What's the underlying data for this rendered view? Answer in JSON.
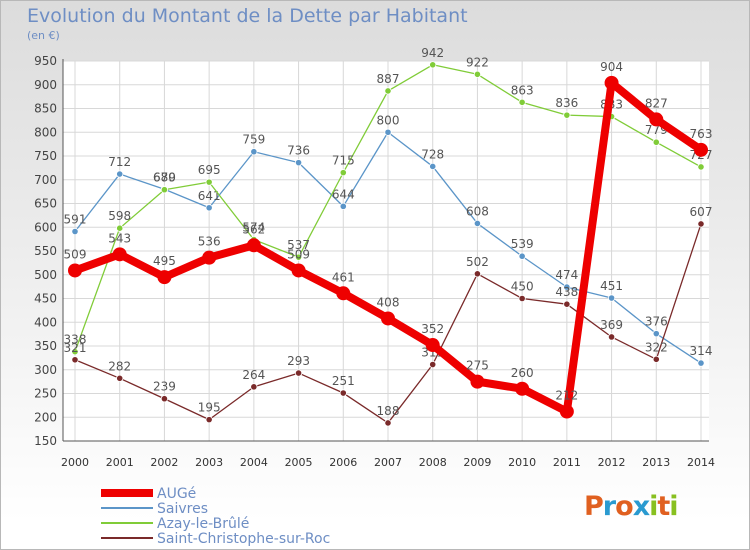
{
  "title": "Evolution du Montant de la Dette par Habitant",
  "unit_label": "(en €)",
  "logo": {
    "text": "Proxiti",
    "letter_colors": [
      "#e06020",
      "#2a9ad0",
      "#e06020",
      "#2a9ad0",
      "#88c020",
      "#e06020",
      "#88c020"
    ]
  },
  "chart_data": {
    "type": "line",
    "x": [
      2000,
      2001,
      2002,
      2003,
      2004,
      2005,
      2006,
      2007,
      2008,
      2009,
      2010,
      2011,
      2012,
      2013,
      2014
    ],
    "ylim": [
      150,
      950
    ],
    "yticks": [
      150,
      200,
      250,
      300,
      350,
      400,
      450,
      500,
      550,
      600,
      650,
      700,
      750,
      800,
      850,
      900,
      950
    ],
    "grid": true,
    "legend_position": "bottom-left",
    "series": [
      {
        "name": "AUGé",
        "color": "#ee0000",
        "values": [
          509,
          543,
          495,
          536,
          562,
          509,
          461,
          408,
          352,
          275,
          260,
          212,
          904,
          827,
          763
        ]
      },
      {
        "name": "Saivres",
        "color": "#5b95c8",
        "values": [
          591,
          712,
          680,
          641,
          759,
          736,
          644,
          800,
          728,
          608,
          539,
          474,
          451,
          376,
          314
        ]
      },
      {
        "name": "Azay-le-Brûlé",
        "color": "#80cc38",
        "values": [
          338,
          598,
          679,
          695,
          574,
          537,
          715,
          887,
          942,
          922,
          863,
          836,
          833,
          779,
          727
        ]
      },
      {
        "name": "Saint-Christophe-sur-Roc",
        "color": "#7a2a2a",
        "values": [
          321,
          282,
          239,
          195,
          264,
          293,
          251,
          188,
          311,
          502,
          450,
          438,
          369,
          322,
          607
        ]
      }
    ]
  }
}
